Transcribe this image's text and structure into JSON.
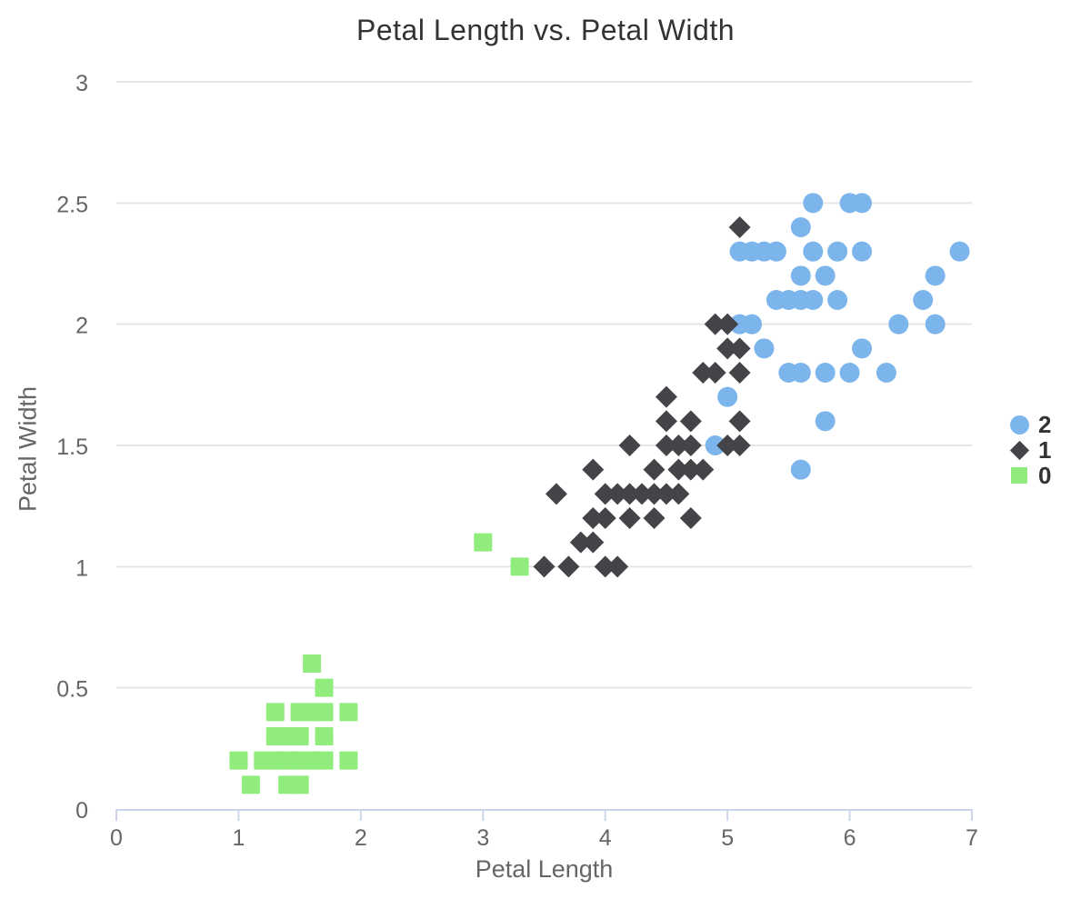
{
  "colors": {
    "background": "#ffffff",
    "grid": "#e6e6e6",
    "axis_line": "#ccd6eb",
    "title_text": "#333333",
    "axis_text": "#666666",
    "legend_text": "#333333",
    "series_2_blue": "#7cb5ec",
    "series_1_dark": "#434348",
    "series_0_green": "#90ed7d"
  },
  "legend": [
    {
      "label": "2",
      "marker": "circle",
      "color": "#7cb5ec"
    },
    {
      "label": "1",
      "marker": "diamond",
      "color": "#434348"
    },
    {
      "label": "0",
      "marker": "square",
      "color": "#90ed7d"
    }
  ],
  "chart_data": {
    "type": "scatter",
    "title": "Petal Length vs. Petal Width",
    "xlabel": "Petal Length",
    "ylabel": "Petal Width",
    "xlim": [
      0,
      7
    ],
    "ylim": [
      0,
      3
    ],
    "x_ticks": [
      0,
      1,
      2,
      3,
      4,
      5,
      6,
      7
    ],
    "y_ticks": [
      0,
      0.5,
      1,
      1.5,
      2,
      2.5,
      3
    ],
    "grid": "horizontal-only",
    "legend_position": "right-middle",
    "series": [
      {
        "name": "2",
        "marker": "circle",
        "color": "#7cb5ec",
        "points": [
          [
            5.6,
            1.4
          ],
          [
            4.9,
            1.5
          ],
          [
            5.8,
            1.6
          ],
          [
            5.0,
            1.7
          ],
          [
            5.5,
            1.8
          ],
          [
            5.6,
            1.8
          ],
          [
            5.8,
            1.8
          ],
          [
            6.0,
            1.8
          ],
          [
            6.3,
            1.8
          ],
          [
            5.3,
            1.9
          ],
          [
            6.1,
            1.9
          ],
          [
            5.1,
            2.0
          ],
          [
            5.2,
            2.0
          ],
          [
            6.4,
            2.0
          ],
          [
            6.7,
            2.0
          ],
          [
            5.4,
            2.1
          ],
          [
            5.5,
            2.1
          ],
          [
            5.6,
            2.1
          ],
          [
            5.7,
            2.1
          ],
          [
            5.9,
            2.1
          ],
          [
            6.6,
            2.1
          ],
          [
            5.6,
            2.2
          ],
          [
            5.8,
            2.2
          ],
          [
            6.7,
            2.2
          ],
          [
            5.1,
            2.3
          ],
          [
            5.2,
            2.3
          ],
          [
            5.3,
            2.3
          ],
          [
            5.4,
            2.3
          ],
          [
            5.7,
            2.3
          ],
          [
            5.9,
            2.3
          ],
          [
            6.1,
            2.3
          ],
          [
            6.9,
            2.3
          ],
          [
            5.6,
            2.4
          ],
          [
            5.7,
            2.5
          ],
          [
            6.0,
            2.5
          ],
          [
            6.1,
            2.5
          ]
        ]
      },
      {
        "name": "1",
        "marker": "diamond",
        "color": "#434348",
        "points": [
          [
            3.5,
            1.0
          ],
          [
            3.7,
            1.0
          ],
          [
            4.0,
            1.0
          ],
          [
            4.1,
            1.0
          ],
          [
            3.8,
            1.1
          ],
          [
            3.9,
            1.1
          ],
          [
            3.9,
            1.2
          ],
          [
            4.0,
            1.2
          ],
          [
            4.2,
            1.2
          ],
          [
            4.4,
            1.2
          ],
          [
            4.7,
            1.2
          ],
          [
            3.6,
            1.3
          ],
          [
            4.0,
            1.3
          ],
          [
            4.1,
            1.3
          ],
          [
            4.2,
            1.3
          ],
          [
            4.3,
            1.3
          ],
          [
            4.4,
            1.3
          ],
          [
            4.5,
            1.3
          ],
          [
            4.6,
            1.3
          ],
          [
            3.9,
            1.4
          ],
          [
            4.4,
            1.4
          ],
          [
            4.6,
            1.4
          ],
          [
            4.7,
            1.4
          ],
          [
            4.8,
            1.4
          ],
          [
            4.2,
            1.5
          ],
          [
            4.5,
            1.5
          ],
          [
            4.6,
            1.5
          ],
          [
            4.7,
            1.5
          ],
          [
            5.0,
            1.5
          ],
          [
            5.1,
            1.5
          ],
          [
            4.5,
            1.6
          ],
          [
            4.7,
            1.6
          ],
          [
            5.1,
            1.6
          ],
          [
            4.5,
            1.7
          ],
          [
            4.8,
            1.8
          ],
          [
            4.9,
            1.8
          ],
          [
            5.1,
            1.8
          ],
          [
            5.0,
            1.9
          ],
          [
            5.1,
            1.9
          ],
          [
            4.9,
            2.0
          ],
          [
            5.0,
            2.0
          ],
          [
            5.1,
            2.4
          ]
        ]
      },
      {
        "name": "0",
        "marker": "square",
        "color": "#90ed7d",
        "points": [
          [
            1.1,
            0.1
          ],
          [
            1.4,
            0.1
          ],
          [
            1.5,
            0.1
          ],
          [
            1.0,
            0.2
          ],
          [
            1.2,
            0.2
          ],
          [
            1.3,
            0.2
          ],
          [
            1.4,
            0.2
          ],
          [
            1.5,
            0.2
          ],
          [
            1.6,
            0.2
          ],
          [
            1.7,
            0.2
          ],
          [
            1.9,
            0.2
          ],
          [
            1.3,
            0.3
          ],
          [
            1.4,
            0.3
          ],
          [
            1.5,
            0.3
          ],
          [
            1.7,
            0.3
          ],
          [
            1.3,
            0.4
          ],
          [
            1.5,
            0.4
          ],
          [
            1.6,
            0.4
          ],
          [
            1.7,
            0.4
          ],
          [
            1.9,
            0.4
          ],
          [
            1.7,
            0.5
          ],
          [
            1.6,
            0.6
          ],
          [
            3.3,
            1.0
          ],
          [
            3.0,
            1.1
          ]
        ]
      }
    ]
  }
}
